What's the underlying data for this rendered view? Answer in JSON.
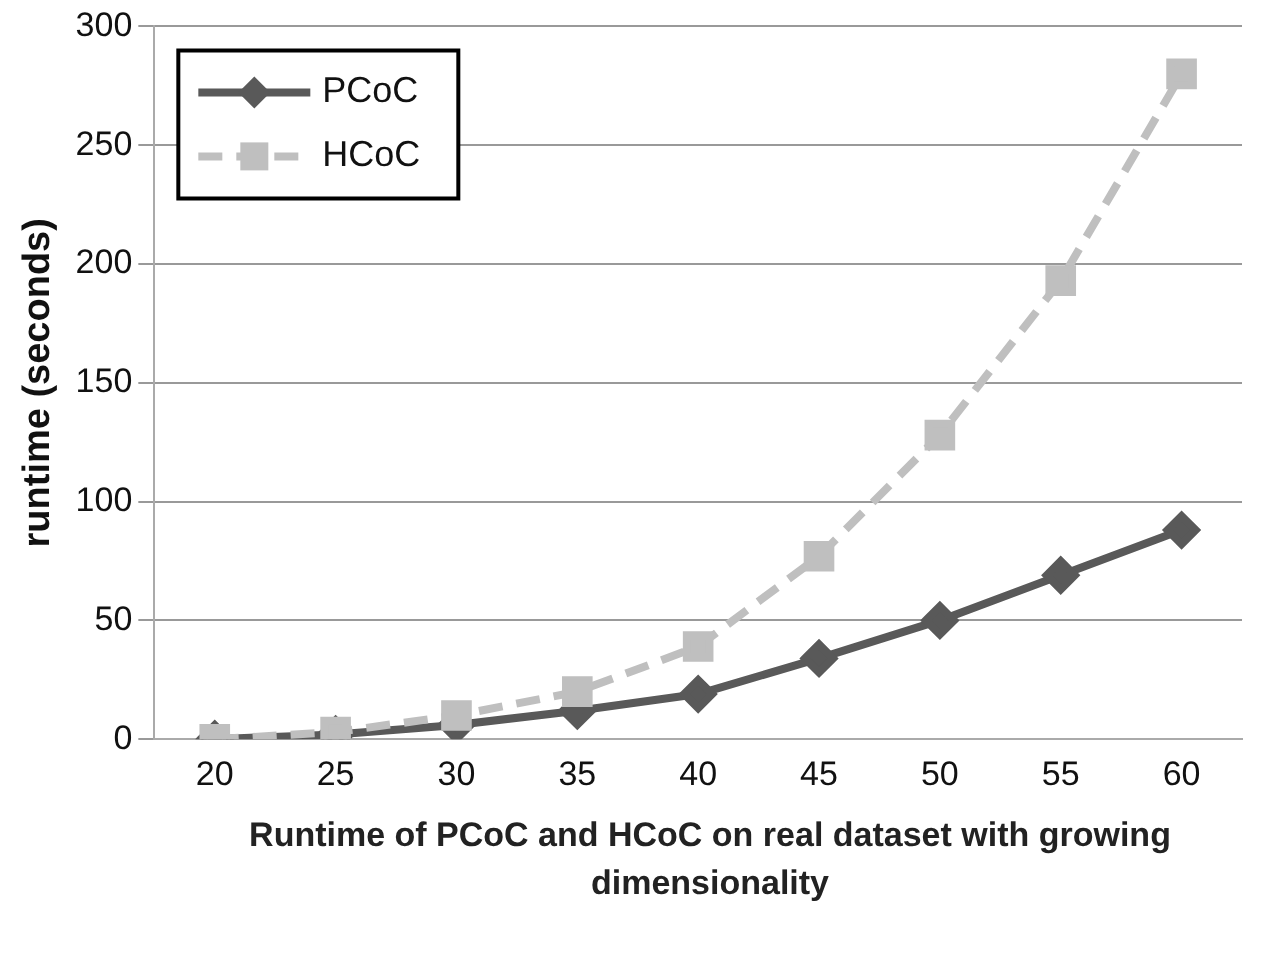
{
  "chart_data": {
    "type": "line",
    "xlabel": "Runtime of PCoC and HCoC on real dataset with growing dimensionality",
    "ylabel": "runtime (seconds)",
    "categories": [
      "20",
      "25",
      "30",
      "35",
      "40",
      "45",
      "50",
      "55",
      "60"
    ],
    "series": [
      {
        "name": "PCoC",
        "color": "#595959",
        "marker": "diamond",
        "line_style": "solid",
        "values": [
          0,
          2,
          6,
          12,
          19,
          34,
          50,
          69,
          88
        ]
      },
      {
        "name": "HCoC",
        "color": "#bfbfbf",
        "marker": "square",
        "line_style": "dashed",
        "values": [
          0,
          3,
          10,
          20,
          39,
          77,
          128,
          193,
          280
        ]
      }
    ],
    "ylim": [
      0,
      300
    ],
    "yticks": [
      0,
      50,
      100,
      150,
      200,
      250,
      300
    ],
    "grid": "y",
    "legend": "top left"
  }
}
